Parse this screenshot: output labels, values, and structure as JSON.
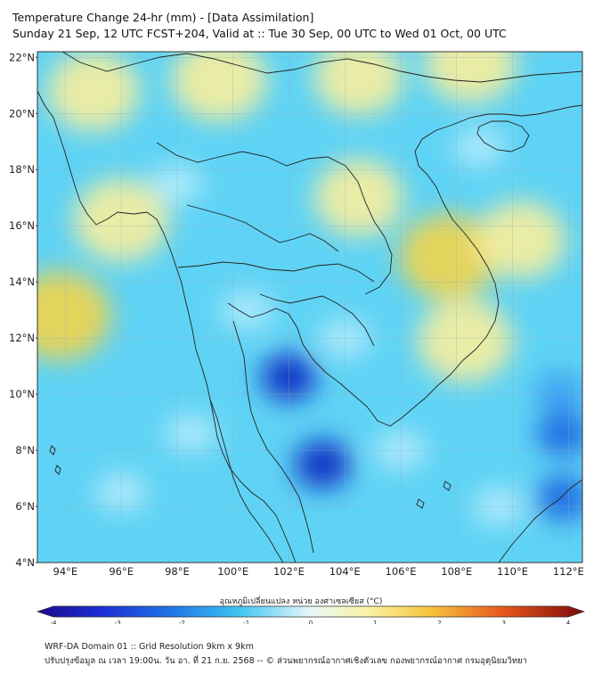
{
  "header": {
    "title_line1": "Temperature Change 24-hr (mm) - [Data Assimilation]",
    "title_line2": "Sunday 21 Sep, 12 UTC FCST+204, Valid at :: Tue 30 Sep, 00 UTC to Wed 01 Oct, 00 UTC"
  },
  "map": {
    "lat_labels": [
      "22°N",
      "20°N",
      "18°N",
      "16°N",
      "14°N",
      "12°N",
      "10°N",
      "8°N",
      "6°N",
      "4°N"
    ],
    "lat_values": [
      22,
      20,
      18,
      16,
      14,
      12,
      10,
      8,
      6,
      4
    ],
    "lon_labels": [
      "94°E",
      "96°E",
      "98°E",
      "100°E",
      "102°E",
      "104°E",
      "106°E",
      "108°E",
      "110°E",
      "112°E"
    ],
    "lon_values": [
      94,
      96,
      98,
      100,
      102,
      104,
      106,
      108,
      110,
      112
    ],
    "lon_range": [
      93,
      112.5
    ],
    "lat_range": [
      4,
      22.2
    ],
    "background_color": "#5fd3f5",
    "features": [
      {
        "kind": "warm",
        "lon": 95.0,
        "lat": 20.8,
        "level": 0.7
      },
      {
        "kind": "warm",
        "lon": 99.5,
        "lat": 21.2,
        "level": 0.8
      },
      {
        "kind": "warm",
        "lon": 104.5,
        "lat": 21.3,
        "level": 0.6
      },
      {
        "kind": "warm",
        "lon": 108.5,
        "lat": 21.8,
        "level": 0.7
      },
      {
        "kind": "warm",
        "lon": 93.8,
        "lat": 12.8,
        "level": 1.0
      },
      {
        "kind": "warm",
        "lon": 96.0,
        "lat": 16.2,
        "level": 0.8
      },
      {
        "kind": "warm",
        "lon": 107.7,
        "lat": 14.9,
        "level": 0.9
      },
      {
        "kind": "warm",
        "lon": 108.3,
        "lat": 11.9,
        "level": 0.8
      },
      {
        "kind": "warm",
        "lon": 104.5,
        "lat": 17.0,
        "level": 0.6
      },
      {
        "kind": "warm",
        "lon": 110.3,
        "lat": 15.5,
        "level": 0.6
      },
      {
        "kind": "cool",
        "lon": 102.0,
        "lat": 10.6,
        "level": -2.2
      },
      {
        "kind": "cool",
        "lon": 103.2,
        "lat": 7.5,
        "level": -2.3
      },
      {
        "kind": "cool",
        "lon": 111.8,
        "lat": 8.6,
        "level": -1.9
      },
      {
        "kind": "cool",
        "lon": 111.8,
        "lat": 6.3,
        "level": -2.0
      },
      {
        "kind": "cool",
        "lon": 111.7,
        "lat": 10.0,
        "level": -1.6
      }
    ]
  },
  "colorbar": {
    "label": "อุณหภูมิเปลี่ยนแปลง หน่วย องศาเซลเซียส (°C)",
    "tick_labels": [
      "-4",
      "-3",
      "-2",
      "-1",
      "0",
      "1",
      "2",
      "3",
      "4"
    ],
    "tick_values": [
      -4,
      -3,
      -2,
      -1,
      0,
      1,
      2,
      3,
      4
    ],
    "range": [
      -4,
      4
    ]
  },
  "footer": {
    "line1": "WRF-DA Domain 01 :: Grid Resolution 9km x 9km",
    "line2": "ปรับปรุงข้อมูล ณ เวลา 19:00น. วัน อา. ที่ 21 ก.ย. 2568 -- © ส่วนพยากรณ์อากาศเชิงตัวเลข กองพยากรณ์อากาศ กรมอุตุนิยมวิทยา"
  }
}
